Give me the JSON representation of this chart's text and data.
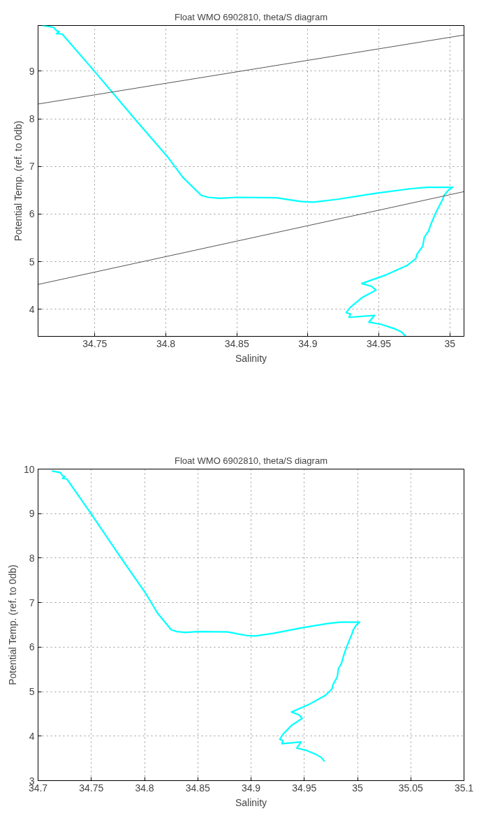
{
  "chart_data": [
    {
      "type": "line",
      "title": "Float WMO 6902810, theta/S diagram",
      "xlabel": "Salinity",
      "ylabel": "Potential Temp. (ref. to 0db)",
      "xlim": [
        34.71,
        35.01
      ],
      "ylim": [
        3.43,
        9.96
      ],
      "xticks": [
        34.75,
        34.8,
        34.85,
        34.9,
        34.95,
        35
      ],
      "yticks": [
        4,
        5,
        6,
        7,
        8,
        9
      ],
      "grid": true,
      "series": [
        {
          "color": "#00ffff",
          "x": [
            34.713,
            34.721,
            34.723,
            34.725,
            34.723,
            34.727,
            34.75,
            34.778,
            34.801,
            34.812,
            34.825,
            34.83,
            34.838,
            34.85,
            34.878,
            34.889,
            34.896,
            34.904,
            34.921,
            34.949,
            34.972,
            34.984,
            35.002,
            34.999,
            34.996,
            34.995,
            34.99,
            34.987,
            34.985,
            34.982,
            34.981,
            34.977,
            34.976,
            34.97,
            34.955,
            34.938,
            34.945,
            34.948,
            34.938,
            34.934,
            34.93,
            34.927,
            34.93,
            34.929,
            34.947,
            34.943,
            34.952,
            34.961,
            34.966,
            34.969
          ],
          "values": [
            9.96,
            9.92,
            9.85,
            9.83,
            9.79,
            9.78,
            8.99,
            8.0,
            7.21,
            6.77,
            6.39,
            6.35,
            6.33,
            6.35,
            6.34,
            6.29,
            6.26,
            6.25,
            6.31,
            6.44,
            6.53,
            6.56,
            6.56,
            6.5,
            6.39,
            6.31,
            6.02,
            5.81,
            5.64,
            5.51,
            5.33,
            5.16,
            5.06,
            4.92,
            4.72,
            4.54,
            4.48,
            4.4,
            4.24,
            4.14,
            4.04,
            3.93,
            3.9,
            3.83,
            3.87,
            3.73,
            3.68,
            3.59,
            3.52,
            3.43
          ]
        },
        {
          "color": "#555555",
          "x": [
            34.71,
            35.01
          ],
          "values": [
            8.31,
            9.76
          ]
        },
        {
          "color": "#555555",
          "x": [
            34.71,
            35.01
          ],
          "values": [
            4.52,
            6.47
          ]
        }
      ]
    },
    {
      "type": "line",
      "title": "Float WMO 6902810, theta/S diagram",
      "xlabel": "Salinity",
      "ylabel": "Potential Temp. (ref. to 0db)",
      "xlim": [
        34.7,
        35.1
      ],
      "ylim": [
        3,
        10
      ],
      "xticks": [
        34.7,
        34.75,
        34.8,
        34.85,
        34.9,
        34.95,
        35,
        35.05,
        35.1
      ],
      "yticks": [
        3,
        4,
        5,
        6,
        7,
        8,
        9,
        10
      ],
      "grid": true,
      "series": [
        {
          "color": "#00ffff",
          "x": [
            34.713,
            34.721,
            34.723,
            34.725,
            34.723,
            34.727,
            34.75,
            34.778,
            34.801,
            34.812,
            34.825,
            34.83,
            34.838,
            34.85,
            34.878,
            34.889,
            34.896,
            34.904,
            34.921,
            34.949,
            34.972,
            34.984,
            35.002,
            34.999,
            34.996,
            34.995,
            34.99,
            34.987,
            34.985,
            34.982,
            34.981,
            34.977,
            34.976,
            34.97,
            34.955,
            34.938,
            34.945,
            34.948,
            34.938,
            34.934,
            34.93,
            34.927,
            34.93,
            34.929,
            34.947,
            34.943,
            34.952,
            34.961,
            34.966,
            34.969
          ],
          "values": [
            9.96,
            9.92,
            9.85,
            9.83,
            9.79,
            9.78,
            8.99,
            8.0,
            7.21,
            6.77,
            6.39,
            6.35,
            6.33,
            6.35,
            6.34,
            6.29,
            6.26,
            6.25,
            6.31,
            6.44,
            6.53,
            6.56,
            6.56,
            6.5,
            6.39,
            6.31,
            6.02,
            5.81,
            5.64,
            5.51,
            5.33,
            5.16,
            5.06,
            4.92,
            4.72,
            4.54,
            4.48,
            4.4,
            4.24,
            4.14,
            4.04,
            3.93,
            3.9,
            3.83,
            3.87,
            3.73,
            3.68,
            3.59,
            3.52,
            3.43
          ]
        }
      ]
    }
  ]
}
